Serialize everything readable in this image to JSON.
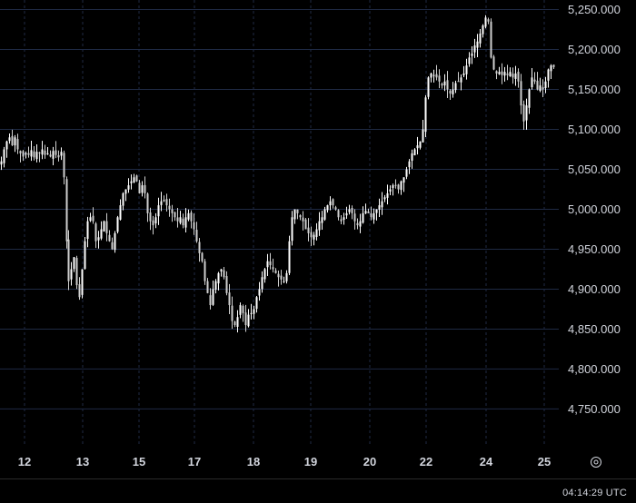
{
  "chart_data": {
    "type": "candlestick",
    "theme": "dark",
    "up_color": "#ffffff",
    "down_color": "#cfcfcf",
    "grid_color": "#1f2a44",
    "grid": true,
    "ylim": [
      4705,
      5262
    ],
    "y_ticks": [
      4750000,
      4800000,
      4850000,
      4900000,
      4950000,
      5000000,
      5050000,
      5100000,
      5150000,
      5200000,
      5250000
    ],
    "y_tick_labels": [
      "4,750.000",
      "4,800.000",
      "4,850.000",
      "4,900.000",
      "4,950.000",
      "5,000.000",
      "5,050.000",
      "5,100.000",
      "5,150.000",
      "5,200.000",
      "5,250.000"
    ],
    "x_tick_labels": [
      "12",
      "13",
      "15",
      "17",
      "18",
      "19",
      "20",
      "22",
      "24",
      "25"
    ],
    "series_close_points": [
      [
        0,
        5060
      ],
      [
        3,
        5075
      ],
      [
        6,
        5085
      ],
      [
        9,
        5090
      ],
      [
        12,
        5080
      ],
      [
        15,
        5090
      ],
      [
        18,
        5075
      ],
      [
        21,
        5070
      ],
      [
        24,
        5066
      ],
      [
        27,
        5070
      ],
      [
        30,
        5068
      ],
      [
        33,
        5074
      ],
      [
        36,
        5065
      ],
      [
        39,
        5072
      ],
      [
        42,
        5070
      ],
      [
        45,
        5075
      ],
      [
        48,
        5068
      ],
      [
        51,
        5070
      ],
      [
        54,
        5066
      ],
      [
        57,
        5073
      ],
      [
        60,
        5068
      ],
      [
        63,
        5065
      ],
      [
        66,
        5072
      ],
      [
        69,
        5040
      ],
      [
        72,
        4960
      ],
      [
        74,
        4910
      ],
      [
        77,
        4925
      ],
      [
        80,
        4940
      ],
      [
        83,
        4905
      ],
      [
        86,
        4890
      ],
      [
        89,
        4925
      ],
      [
        92,
        4960
      ],
      [
        95,
        4985
      ],
      [
        98,
        4990
      ],
      [
        101,
        4985
      ],
      [
        104,
        4960
      ],
      [
        107,
        4965
      ],
      [
        110,
        4975
      ],
      [
        113,
        4985
      ],
      [
        116,
        4970
      ],
      [
        119,
        4960
      ],
      [
        122,
        4950
      ],
      [
        125,
        4970
      ],
      [
        128,
        4990
      ],
      [
        131,
        5005
      ],
      [
        134,
        5020
      ],
      [
        137,
        5025
      ],
      [
        140,
        5030
      ],
      [
        143,
        5035
      ],
      [
        146,
        5040
      ],
      [
        149,
        5035
      ],
      [
        152,
        5020
      ],
      [
        155,
        5030
      ],
      [
        158,
        5020
      ],
      [
        161,
        4995
      ],
      [
        164,
        4985
      ],
      [
        167,
        4980
      ],
      [
        170,
        4990
      ],
      [
        173,
        5005
      ],
      [
        176,
        5010
      ],
      [
        179,
        5010
      ],
      [
        182,
        5005
      ],
      [
        185,
        5000
      ],
      [
        188,
        4995
      ],
      [
        191,
        4990
      ],
      [
        194,
        4985
      ],
      [
        197,
        4990
      ],
      [
        200,
        4980
      ],
      [
        203,
        4990
      ],
      [
        206,
        4995
      ],
      [
        209,
        4985
      ],
      [
        212,
        4975
      ],
      [
        215,
        4960
      ],
      [
        218,
        4945
      ],
      [
        221,
        4935
      ],
      [
        224,
        4910
      ],
      [
        227,
        4895
      ],
      [
        230,
        4880
      ],
      [
        233,
        4900
      ],
      [
        236,
        4910
      ],
      [
        239,
        4920
      ],
      [
        242,
        4925
      ],
      [
        245,
        4915
      ],
      [
        248,
        4895
      ],
      [
        251,
        4880
      ],
      [
        254,
        4860
      ],
      [
        257,
        4855
      ],
      [
        260,
        4865
      ],
      [
        263,
        4880
      ],
      [
        266,
        4870
      ],
      [
        269,
        4855
      ],
      [
        272,
        4868
      ],
      [
        275,
        4870
      ],
      [
        278,
        4875
      ],
      [
        281,
        4890
      ],
      [
        284,
        4900
      ],
      [
        287,
        4915
      ],
      [
        290,
        4925
      ],
      [
        293,
        4935
      ],
      [
        296,
        4930
      ],
      [
        299,
        4925
      ],
      [
        302,
        4920
      ],
      [
        305,
        4915
      ],
      [
        308,
        4912
      ],
      [
        311,
        4910
      ],
      [
        314,
        4920
      ],
      [
        317,
        4960
      ],
      [
        320,
        4990
      ],
      [
        323,
        5000
      ],
      [
        326,
        4995
      ],
      [
        329,
        4990
      ],
      [
        332,
        4985
      ],
      [
        335,
        4975
      ],
      [
        338,
        4970
      ],
      [
        341,
        4965
      ],
      [
        344,
        4968
      ],
      [
        347,
        4975
      ],
      [
        350,
        4985
      ],
      [
        353,
        4990
      ],
      [
        356,
        5000
      ],
      [
        359,
        5005
      ],
      [
        362,
        5010
      ],
      [
        365,
        5005
      ],
      [
        368,
        5000
      ],
      [
        371,
        4990
      ],
      [
        374,
        4985
      ],
      [
        377,
        4990
      ],
      [
        380,
        4995
      ],
      [
        383,
        5000
      ],
      [
        386,
        4995
      ],
      [
        389,
        4985
      ],
      [
        392,
        4980
      ],
      [
        395,
        4985
      ],
      [
        398,
        4995
      ],
      [
        401,
        4998
      ],
      [
        404,
        4995
      ],
      [
        407,
        4990
      ],
      [
        410,
        4995
      ],
      [
        413,
        5000
      ],
      [
        416,
        5005
      ],
      [
        419,
        5010
      ],
      [
        422,
        5015
      ],
      [
        425,
        5020
      ],
      [
        428,
        5025
      ],
      [
        431,
        5030
      ],
      [
        434,
        5030
      ],
      [
        437,
        5025
      ],
      [
        440,
        5035
      ],
      [
        443,
        5040
      ],
      [
        446,
        5050
      ],
      [
        449,
        5060
      ],
      [
        452,
        5070
      ],
      [
        455,
        5075
      ],
      [
        458,
        5080
      ],
      [
        461,
        5085
      ],
      [
        464,
        5100
      ],
      [
        467,
        5140
      ],
      [
        470,
        5165
      ],
      [
        473,
        5170
      ],
      [
        476,
        5168
      ],
      [
        479,
        5165
      ],
      [
        482,
        5160
      ],
      [
        485,
        5155
      ],
      [
        488,
        5160
      ],
      [
        491,
        5150
      ],
      [
        494,
        5145
      ],
      [
        497,
        5150
      ],
      [
        500,
        5158
      ],
      [
        503,
        5160
      ],
      [
        506,
        5165
      ],
      [
        509,
        5170
      ],
      [
        512,
        5180
      ],
      [
        515,
        5190
      ],
      [
        518,
        5195
      ],
      [
        521,
        5205
      ],
      [
        524,
        5210
      ],
      [
        527,
        5220
      ],
      [
        530,
        5230
      ],
      [
        533,
        5240
      ],
      [
        536,
        5235
      ],
      [
        539,
        5190
      ],
      [
        542,
        5175
      ],
      [
        545,
        5170
      ],
      [
        548,
        5172
      ],
      [
        551,
        5168
      ],
      [
        554,
        5172
      ],
      [
        557,
        5168
      ],
      [
        560,
        5172
      ],
      [
        563,
        5165
      ],
      [
        566,
        5170
      ],
      [
        569,
        5160
      ],
      [
        572,
        5130
      ],
      [
        575,
        5110
      ],
      [
        578,
        5130
      ],
      [
        581,
        5150
      ],
      [
        584,
        5165
      ],
      [
        587,
        5160
      ],
      [
        590,
        5150
      ],
      [
        593,
        5155
      ],
      [
        596,
        5150
      ],
      [
        599,
        5160
      ],
      [
        602,
        5175
      ],
      [
        605,
        5180
      ],
      [
        608,
        5178
      ]
    ]
  },
  "status": {
    "time": "04:14:29 UTC"
  },
  "icons": {
    "settings": "settings-circle-icon"
  }
}
